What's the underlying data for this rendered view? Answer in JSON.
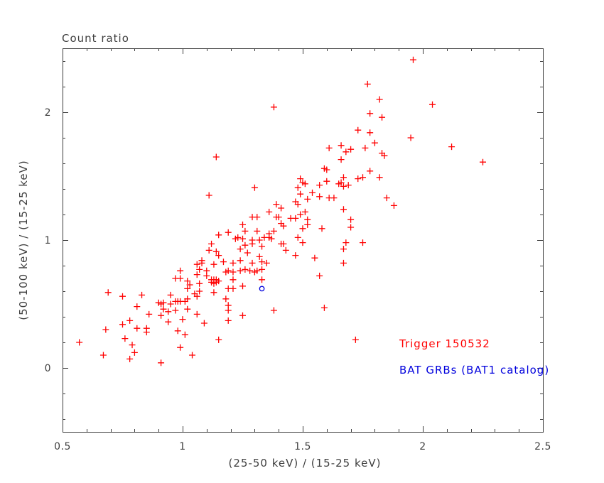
{
  "chart": {
    "title": "Count ratio",
    "x_axis": {
      "label": "(25-50 keV) / (15-25 keV)",
      "tick_values": [
        0.5,
        1,
        1.5,
        2,
        2.5
      ],
      "tick_labels": [
        "0.5",
        "1",
        "1.5",
        "2",
        "2.5"
      ],
      "minor_step": 0.1
    },
    "y_axis": {
      "label": "(50-100 keV) / (15-25 keV)",
      "tick_values": [
        0,
        1,
        2
      ],
      "tick_labels": [
        "0",
        "1",
        "2"
      ],
      "minor_step": 0.2
    },
    "legend": [
      {
        "label": "Trigger 150532",
        "color": "#ff0000"
      },
      {
        "label": "BAT GRBs (BAT1 catalog)",
        "color": "#0000dd"
      }
    ],
    "colors": {
      "frame": "#3c3c3c",
      "red_marker": "#ff0000",
      "blue_marker": "#0000dd",
      "background": "#ffffff"
    }
  },
  "chart_data": {
    "type": "scatter",
    "title": "Count ratio",
    "xlabel": "(25-50 keV) / (15-25 keV)",
    "ylabel": "(50-100 keV) / (15-25 keV)",
    "xlim": [
      0.5,
      2.5
    ],
    "ylim": [
      -0.5,
      2.5
    ],
    "grid": false,
    "legend_position": "lower-right-inside",
    "series": [
      {
        "name": "Trigger 150532",
        "marker": "plus",
        "color": "#ff0000",
        "points": [
          [
            0.57,
            0.2
          ],
          [
            0.69,
            0.59
          ],
          [
            0.67,
            0.1
          ],
          [
            0.75,
            0.56
          ],
          [
            0.68,
            0.3
          ],
          [
            0.75,
            0.34
          ],
          [
            0.78,
            0.37
          ],
          [
            0.81,
            0.31
          ],
          [
            0.76,
            0.23
          ],
          [
            0.79,
            0.18
          ],
          [
            0.8,
            0.12
          ],
          [
            0.78,
            0.07
          ],
          [
            0.83,
            0.57
          ],
          [
            0.81,
            0.48
          ],
          [
            0.86,
            0.42
          ],
          [
            0.85,
            0.31
          ],
          [
            0.85,
            0.28
          ],
          [
            0.91,
            0.04
          ],
          [
            0.9,
            0.51
          ],
          [
            0.91,
            0.5
          ],
          [
            0.92,
            0.51
          ],
          [
            0.91,
            0.41
          ],
          [
            0.92,
            0.46
          ],
          [
            0.94,
            0.36
          ],
          [
            0.94,
            0.44
          ],
          [
            0.95,
            0.5
          ],
          [
            0.95,
            0.57
          ],
          [
            0.97,
            0.52
          ],
          [
            0.97,
            0.45
          ],
          [
            0.98,
            0.29
          ],
          [
            0.98,
            0.52
          ],
          [
            0.99,
            0.16
          ],
          [
            0.99,
            0.76
          ],
          [
            0.99,
            0.52
          ],
          [
            0.97,
            0.7
          ],
          [
            0.99,
            0.7
          ],
          [
            1.0,
            0.38
          ],
          [
            1.01,
            0.52
          ],
          [
            1.02,
            0.54
          ],
          [
            1.02,
            0.46
          ],
          [
            1.02,
            0.68
          ],
          [
            1.01,
            0.26
          ],
          [
            1.02,
            0.62
          ],
          [
            1.03,
            0.65
          ],
          [
            1.04,
            0.1
          ],
          [
            1.05,
            0.58
          ],
          [
            1.06,
            0.56
          ],
          [
            1.06,
            0.42
          ],
          [
            1.06,
            0.81
          ],
          [
            1.06,
            0.73
          ],
          [
            1.07,
            0.77
          ],
          [
            1.07,
            0.66
          ],
          [
            1.07,
            0.6
          ],
          [
            1.08,
            0.82
          ],
          [
            1.08,
            0.84
          ],
          [
            1.09,
            0.35
          ],
          [
            1.1,
            0.72
          ],
          [
            1.1,
            0.76
          ],
          [
            1.12,
            0.67
          ],
          [
            1.12,
            0.69
          ],
          [
            1.13,
            0.66
          ],
          [
            1.13,
            0.69
          ],
          [
            1.14,
            0.67
          ],
          [
            1.14,
            0.69
          ],
          [
            1.15,
            0.68
          ],
          [
            1.13,
            0.59
          ],
          [
            1.13,
            0.81
          ],
          [
            1.15,
            0.88
          ],
          [
            1.15,
            0.22
          ],
          [
            1.17,
            0.83
          ],
          [
            1.18,
            0.75
          ],
          [
            1.18,
            0.54
          ],
          [
            1.19,
            0.49
          ],
          [
            1.19,
            0.45
          ],
          [
            1.19,
            0.37
          ],
          [
            1.19,
            0.76
          ],
          [
            1.19,
            0.62
          ],
          [
            1.21,
            0.75
          ],
          [
            1.21,
            0.62
          ],
          [
            1.21,
            0.69
          ],
          [
            1.21,
            0.82
          ],
          [
            1.32,
            0.87
          ],
          [
            1.47,
            0.88
          ],
          [
            1.55,
            0.86
          ],
          [
            1.24,
            0.84
          ],
          [
            1.29,
            0.82
          ],
          [
            1.33,
            0.83
          ],
          [
            1.35,
            0.82
          ],
          [
            1.67,
            0.82
          ],
          [
            1.24,
            0.76
          ],
          [
            1.26,
            0.77
          ],
          [
            1.28,
            0.76
          ],
          [
            1.3,
            0.75
          ],
          [
            1.31,
            0.76
          ],
          [
            1.33,
            0.77
          ],
          [
            1.33,
            0.69
          ],
          [
            1.57,
            0.72
          ],
          [
            1.25,
            0.64
          ],
          [
            1.38,
            0.45
          ],
          [
            1.59,
            0.47
          ],
          [
            1.25,
            0.41
          ],
          [
            1.72,
            0.22
          ],
          [
            1.14,
            1.65
          ],
          [
            1.11,
            1.35
          ],
          [
            1.15,
            1.04
          ],
          [
            1.19,
            1.06
          ],
          [
            1.12,
            0.97
          ],
          [
            1.11,
            0.92
          ],
          [
            1.14,
            0.91
          ],
          [
            1.22,
            1.01
          ],
          [
            1.96,
            2.41
          ],
          [
            1.77,
            2.22
          ],
          [
            1.82,
            2.1
          ],
          [
            1.38,
            2.04
          ],
          [
            1.78,
            1.99
          ],
          [
            1.83,
            1.96
          ],
          [
            1.73,
            1.86
          ],
          [
            1.78,
            1.84
          ],
          [
            1.8,
            1.76
          ],
          [
            1.61,
            1.72
          ],
          [
            1.66,
            1.74
          ],
          [
            1.68,
            1.69
          ],
          [
            1.7,
            1.71
          ],
          [
            1.76,
            1.72
          ],
          [
            1.83,
            1.68
          ],
          [
            1.84,
            1.66
          ],
          [
            1.66,
            1.63
          ],
          [
            1.59,
            1.56
          ],
          [
            1.6,
            1.55
          ],
          [
            1.78,
            1.54
          ],
          [
            1.49,
            1.48
          ],
          [
            1.5,
            1.45
          ],
          [
            1.67,
            1.49
          ],
          [
            1.73,
            1.48
          ],
          [
            1.75,
            1.49
          ],
          [
            1.82,
            1.49
          ],
          [
            1.48,
            1.41
          ],
          [
            1.6,
            1.46
          ],
          [
            1.57,
            1.43
          ],
          [
            1.65,
            1.44
          ],
          [
            1.66,
            1.45
          ],
          [
            1.67,
            1.42
          ],
          [
            1.69,
            1.43
          ],
          [
            1.3,
            1.41
          ],
          [
            1.51,
            1.44
          ],
          [
            1.49,
            1.36
          ],
          [
            1.52,
            1.32
          ],
          [
            1.54,
            1.37
          ],
          [
            1.57,
            1.34
          ],
          [
            1.61,
            1.33
          ],
          [
            1.63,
            1.33
          ],
          [
            1.85,
            1.33
          ],
          [
            1.88,
            1.27
          ],
          [
            1.39,
            1.28
          ],
          [
            1.41,
            1.25
          ],
          [
            1.36,
            1.22
          ],
          [
            1.67,
            1.24
          ],
          [
            1.48,
            1.28
          ],
          [
            1.47,
            1.3
          ],
          [
            1.29,
            1.18
          ],
          [
            1.31,
            1.18
          ],
          [
            1.39,
            1.18
          ],
          [
            1.4,
            1.18
          ],
          [
            1.45,
            1.17
          ],
          [
            1.47,
            1.17
          ],
          [
            1.49,
            1.2
          ],
          [
            1.51,
            1.22
          ],
          [
            1.52,
            1.16
          ],
          [
            1.7,
            1.16
          ],
          [
            1.25,
            1.12
          ],
          [
            1.26,
            1.07
          ],
          [
            1.31,
            1.07
          ],
          [
            1.36,
            1.05
          ],
          [
            1.38,
            1.07
          ],
          [
            1.41,
            1.13
          ],
          [
            1.42,
            1.11
          ],
          [
            1.5,
            1.09
          ],
          [
            1.52,
            1.12
          ],
          [
            1.58,
            1.09
          ],
          [
            1.7,
            1.1
          ],
          [
            1.23,
            1.02
          ],
          [
            1.25,
            1.01
          ],
          [
            1.29,
            1.0
          ],
          [
            1.32,
            1.0
          ],
          [
            1.34,
            1.02
          ],
          [
            1.36,
            1.02
          ],
          [
            1.37,
            1.01
          ],
          [
            1.48,
            1.02
          ],
          [
            1.5,
            0.98
          ],
          [
            1.41,
            0.97
          ],
          [
            1.42,
            0.97
          ],
          [
            1.26,
            0.96
          ],
          [
            1.29,
            0.97
          ],
          [
            1.33,
            0.95
          ],
          [
            1.68,
            0.98
          ],
          [
            1.75,
            0.98
          ],
          [
            1.67,
            0.93
          ],
          [
            1.43,
            0.92
          ],
          [
            1.24,
            0.93
          ],
          [
            1.27,
            0.9
          ],
          [
            2.04,
            2.06
          ],
          [
            1.95,
            1.8
          ],
          [
            2.12,
            1.73
          ],
          [
            2.25,
            1.61
          ]
        ]
      },
      {
        "name": "BAT GRBs (BAT1 catalog)",
        "marker": "open-circle",
        "color": "#0000dd",
        "points": [
          [
            1.33,
            0.62
          ]
        ]
      }
    ]
  }
}
